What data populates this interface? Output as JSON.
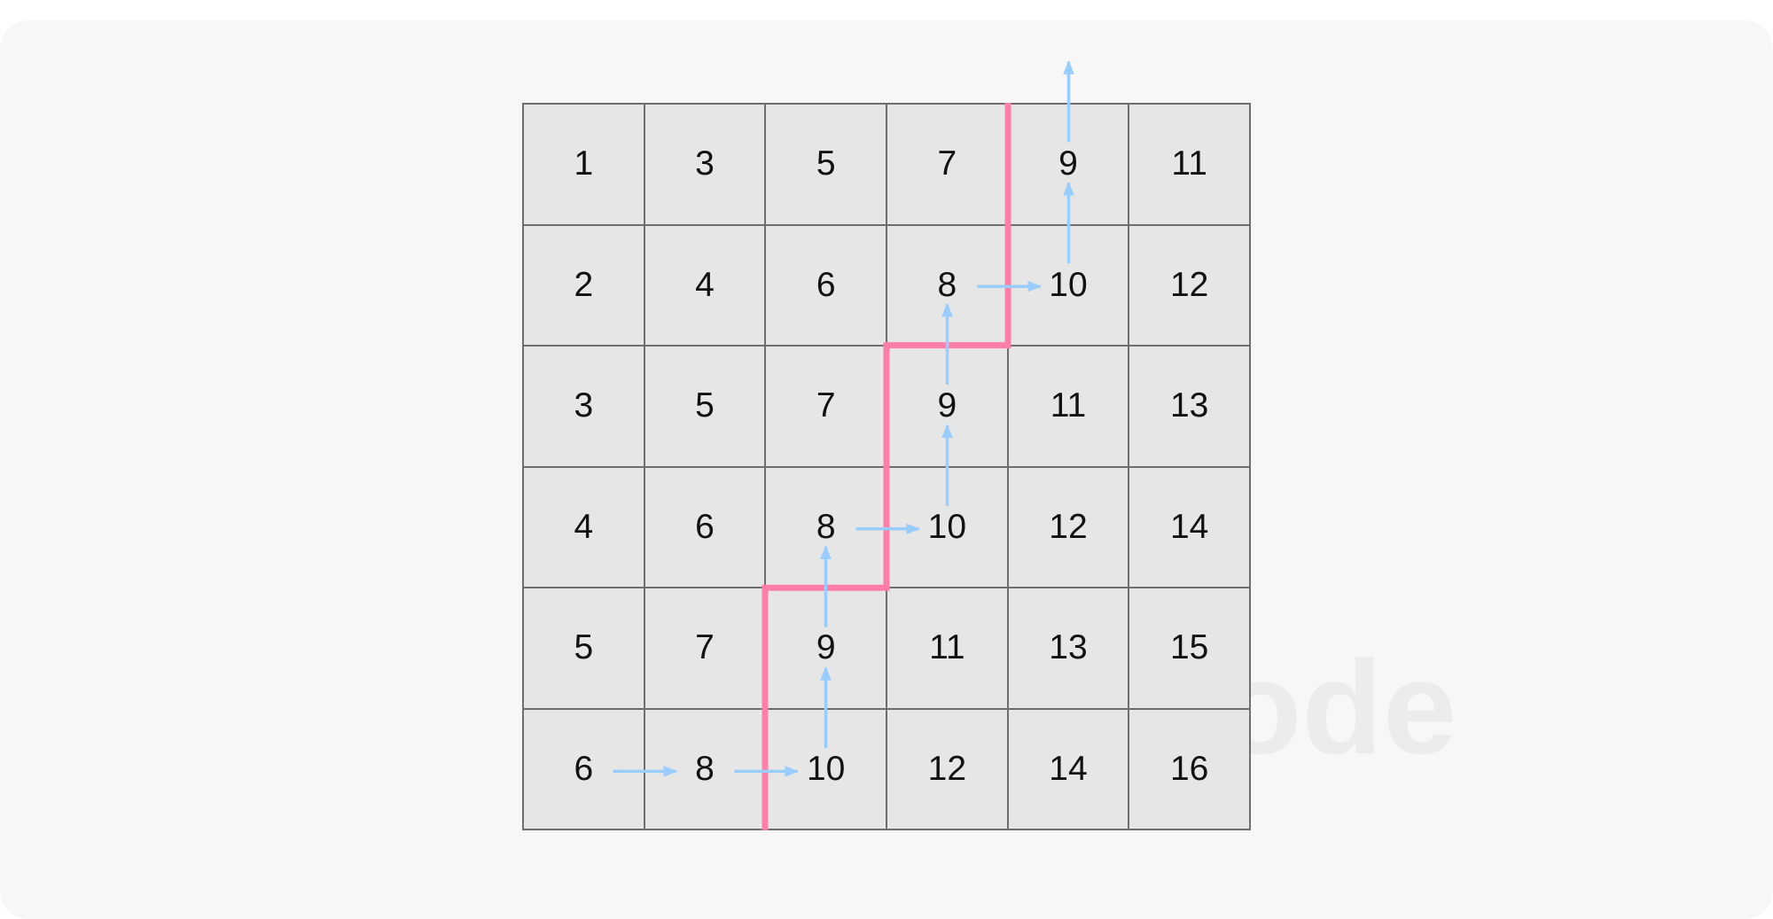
{
  "watermark": "LeetCode",
  "grid": [
    [
      1,
      3,
      5,
      7,
      9,
      11
    ],
    [
      2,
      4,
      6,
      8,
      10,
      12
    ],
    [
      3,
      5,
      7,
      9,
      11,
      13
    ],
    [
      4,
      6,
      8,
      10,
      12,
      14
    ],
    [
      5,
      7,
      9,
      11,
      13,
      15
    ],
    [
      6,
      8,
      10,
      12,
      14,
      16
    ]
  ],
  "path_color": "#ff7ea8",
  "arrow_color": "#99ccff",
  "cell_fill": "#e6e6e6",
  "border_color": "#6e6e6e",
  "staircase_boundary": [
    [
      6,
      2
    ],
    [
      4,
      2
    ],
    [
      4,
      3
    ],
    [
      2,
      3
    ],
    [
      2,
      4
    ],
    [
      0,
      4
    ]
  ],
  "arrows": [
    {
      "from": [
        5,
        0
      ],
      "to": [
        5,
        1
      ]
    },
    {
      "from": [
        5,
        1
      ],
      "to": [
        5,
        2
      ]
    },
    {
      "from": [
        5,
        2
      ],
      "to": [
        4,
        2
      ]
    },
    {
      "from": [
        4,
        2
      ],
      "to": [
        3,
        2
      ]
    },
    {
      "from": [
        3,
        2
      ],
      "to": [
        3,
        3
      ]
    },
    {
      "from": [
        3,
        3
      ],
      "to": [
        2,
        3
      ]
    },
    {
      "from": [
        2,
        3
      ],
      "to": [
        1,
        3
      ]
    },
    {
      "from": [
        1,
        3
      ],
      "to": [
        1,
        4
      ]
    },
    {
      "from": [
        1,
        4
      ],
      "to": [
        0,
        4
      ]
    },
    {
      "from": [
        0,
        4
      ],
      "to": [
        -1,
        4
      ]
    }
  ]
}
